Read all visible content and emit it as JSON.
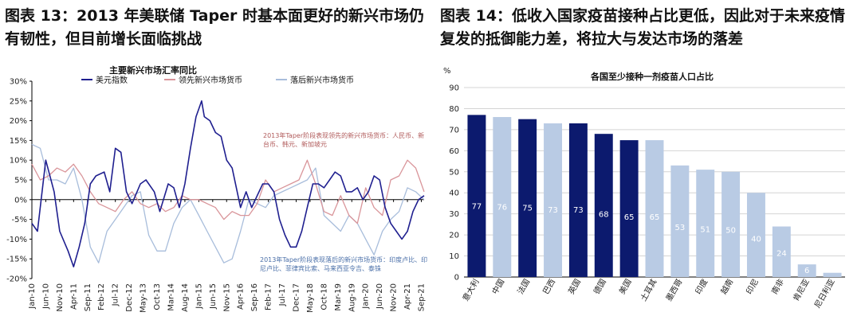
{
  "left_panel": {
    "caption": "图表 13：2013 年美联储 Taper 时基本面更好的新兴市场仍有韧性，但目前增长面临挑战"
  },
  "right_panel": {
    "caption": "图表 14：低收入国家疫苗接种占比更低，因此对于未来疫情复发的抵御能力差，将拉大与发达市场的落差"
  },
  "chart_data": [
    {
      "type": "line",
      "title": "主要新兴市场汇率同比",
      "xlabel": "",
      "ylabel": "",
      "ylim": [
        -20,
        30
      ],
      "yticks": [
        "30%",
        "25%",
        "20%",
        "15%",
        "10%",
        "5%",
        "0%",
        "-5%",
        "-10%",
        "-15%",
        "-20%"
      ],
      "xticks": [
        "Jan-10",
        "Jun-10",
        "Nov-10",
        "Apr-11",
        "Sep-11",
        "Feb-12",
        "Jul-12",
        "Dec-12",
        "May-13",
        "Oct-13",
        "Mar-14",
        "Aug-14",
        "Jan-15",
        "Jun-15",
        "Nov-15",
        "Apr-16",
        "Sep-16",
        "Feb-17",
        "Jul-17",
        "Dec-17",
        "May-18",
        "Oct-18",
        "Mar-19",
        "Aug-19",
        "Jan-20",
        "Jun-20",
        "Nov-20",
        "Apr-21",
        "Sep-21"
      ],
      "grid": false,
      "legend_position": "top",
      "x_range": [
        "2010-01",
        "2021-10"
      ],
      "x_unit": "month",
      "series": [
        {
          "name": "美元指数",
          "color": "#1f1f8f",
          "x": [
            "2010-01",
            "2010-03",
            "2010-06",
            "2010-09",
            "2010-11",
            "2011-02",
            "2011-04",
            "2011-06",
            "2011-08",
            "2011-10",
            "2011-12",
            "2012-03",
            "2012-05",
            "2012-07",
            "2012-09",
            "2012-11",
            "2013-01",
            "2013-04",
            "2013-06",
            "2013-09",
            "2013-11",
            "2014-02",
            "2014-04",
            "2014-06",
            "2014-08",
            "2014-10",
            "2014-12",
            "2015-02",
            "2015-03",
            "2015-05",
            "2015-07",
            "2015-09",
            "2015-11",
            "2016-01",
            "2016-04",
            "2016-06",
            "2016-08",
            "2016-10",
            "2016-12",
            "2017-02",
            "2017-04",
            "2017-06",
            "2017-08",
            "2017-10",
            "2017-12",
            "2018-02",
            "2018-04",
            "2018-06",
            "2018-08",
            "2018-10",
            "2018-12",
            "2019-02",
            "2019-04",
            "2019-06",
            "2019-08",
            "2019-10",
            "2019-12",
            "2020-02",
            "2020-04",
            "2020-06",
            "2020-08",
            "2020-10",
            "2020-12",
            "2021-02",
            "2021-04",
            "2021-06",
            "2021-08",
            "2021-10"
          ],
          "values": [
            -6,
            -8,
            10,
            2,
            -8,
            -13,
            -17,
            -12,
            -6,
            4,
            6,
            7,
            2,
            13,
            12,
            2,
            -1,
            4,
            5,
            2,
            -3,
            4,
            3,
            -2,
            4,
            13,
            21,
            25,
            21,
            20,
            17,
            16,
            10,
            8,
            -2,
            2,
            -2,
            1,
            4,
            4,
            2,
            -5,
            -9,
            -12,
            -12,
            -8,
            -2,
            4,
            4,
            3,
            5,
            7,
            6,
            2,
            2,
            3,
            0,
            2,
            6,
            5,
            -2,
            -6,
            -8,
            -10,
            -8,
            -3,
            0,
            1
          ]
        },
        {
          "name": "领先新兴市场货币",
          "color": "#d9959a",
          "x": [
            "2010-01",
            "2010-04",
            "2010-07",
            "2010-10",
            "2011-01",
            "2011-04",
            "2011-07",
            "2011-10",
            "2012-01",
            "2012-04",
            "2012-07",
            "2012-10",
            "2013-01",
            "2013-04",
            "2013-07",
            "2013-10",
            "2014-01",
            "2014-04",
            "2014-07",
            "2014-10",
            "2015-01",
            "2015-04",
            "2015-07",
            "2015-10",
            "2016-01",
            "2016-04",
            "2016-07",
            "2016-10",
            "2017-01",
            "2017-04",
            "2017-07",
            "2017-10",
            "2018-01",
            "2018-04",
            "2018-07",
            "2018-10",
            "2019-01",
            "2019-04",
            "2019-07",
            "2019-10",
            "2020-01",
            "2020-04",
            "2020-07",
            "2020-10",
            "2021-01",
            "2021-04",
            "2021-07",
            "2021-10"
          ],
          "values": [
            9,
            5,
            6,
            8,
            7,
            9,
            6,
            2,
            -1,
            -2,
            -3,
            0,
            2,
            -1,
            -2,
            -1,
            -3,
            -2,
            1,
            0,
            0,
            -1,
            -2,
            -5,
            -3,
            -4,
            -4,
            -1,
            5,
            2,
            3,
            4,
            5,
            10,
            4,
            -3,
            -4,
            1,
            -4,
            -6,
            3,
            -2,
            -4,
            5,
            6,
            10,
            8,
            2
          ]
        },
        {
          "name": "落后新兴市场货币",
          "color": "#a8bddb",
          "x": [
            "2010-01",
            "2010-04",
            "2010-07",
            "2010-10",
            "2011-01",
            "2011-04",
            "2011-07",
            "2011-10",
            "2012-01",
            "2012-04",
            "2012-07",
            "2012-10",
            "2013-01",
            "2013-04",
            "2013-07",
            "2013-10",
            "2014-01",
            "2014-04",
            "2014-07",
            "2014-10",
            "2015-01",
            "2015-04",
            "2015-07",
            "2015-10",
            "2016-01",
            "2016-04",
            "2016-07",
            "2016-10",
            "2017-01",
            "2017-04",
            "2017-07",
            "2017-10",
            "2018-01",
            "2018-04",
            "2018-07",
            "2018-10",
            "2019-01",
            "2019-04",
            "2019-07",
            "2019-10",
            "2020-01",
            "2020-04",
            "2020-07",
            "2020-10",
            "2021-01",
            "2021-04",
            "2021-07",
            "2021-10"
          ],
          "values": [
            14,
            13,
            5,
            5,
            4,
            8,
            0,
            -12,
            -16,
            -8,
            -5,
            -2,
            1,
            2,
            -9,
            -13,
            -13,
            -6,
            -2,
            0,
            -4,
            -8,
            -12,
            -16,
            -15,
            -8,
            0,
            -1,
            -2,
            1,
            2,
            3,
            4,
            5,
            8,
            -4,
            -6,
            -8,
            -4,
            -6,
            -10,
            -14,
            -8,
            -5,
            -3,
            3,
            2,
            0
          ]
        }
      ],
      "annotations": [
        {
          "text": "2013年Taper阶段表现领先的新兴市场货币：人民币、新台币、韩元、新加坡元",
          "color": "#b05a5a"
        },
        {
          "text": "2013年Taper阶段表现落后的新兴市场货币：印度卢比、印尼卢比、菲律宾比索、马来西亚令吉、泰铢",
          "color": "#4a6fa8"
        }
      ]
    },
    {
      "type": "bar",
      "title": "各国至少接种一剂疫苗人口占比",
      "ylabel": "%",
      "xlabel": "",
      "ylim": [
        0,
        90
      ],
      "yticks": [
        "0",
        "10",
        "20",
        "30",
        "40",
        "50",
        "60",
        "70",
        "80",
        "90"
      ],
      "grid": true,
      "categories": [
        "意大利",
        "中国",
        "法国",
        "巴西",
        "英国",
        "德国",
        "美国",
        "土耳其",
        "墨西哥",
        "印度",
        "越南",
        "印尼",
        "南非",
        "肯尼亚",
        "尼日利亚"
      ],
      "values": [
        77,
        76,
        75,
        73,
        73,
        68,
        65,
        65,
        53,
        51,
        50,
        40,
        24,
        6,
        2
      ],
      "bar_labels": [
        "77",
        "76",
        "75",
        "73",
        "73",
        "68",
        "65",
        "65",
        "53",
        "51",
        "50",
        "40",
        "24",
        "6",
        ""
      ],
      "dark_color": "#0c1a6e",
      "light_color": "#b9cbe4",
      "dark_flags": [
        true,
        false,
        true,
        false,
        true,
        true,
        true,
        false,
        false,
        false,
        false,
        false,
        false,
        false,
        false
      ]
    }
  ]
}
